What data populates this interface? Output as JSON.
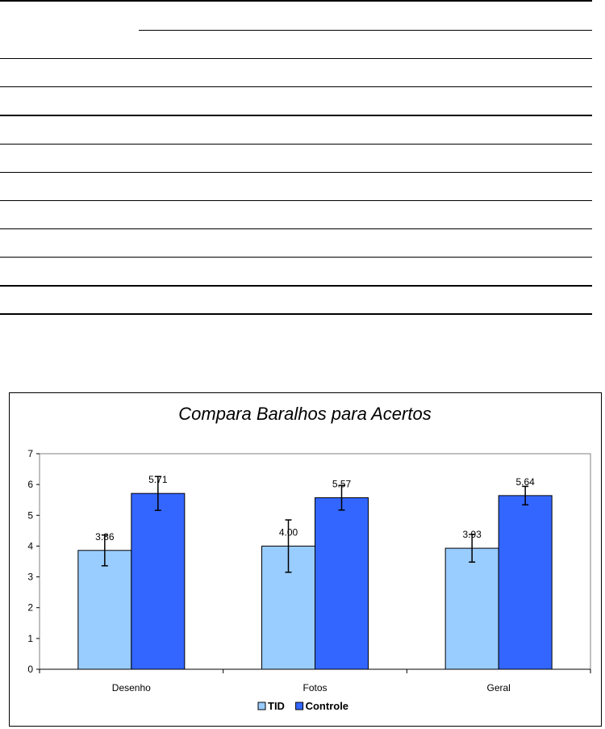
{
  "chart_data": {
    "type": "bar",
    "title": "Compara Baralhos para Acertos",
    "categories": [
      "Desenho",
      "Fotos",
      "Geral"
    ],
    "series": [
      {
        "name": "TID",
        "values": [
          3.86,
          4.0,
          3.93
        ],
        "error": [
          0.5,
          0.85,
          0.45
        ],
        "value_labels": [
          "3.86",
          "4.00",
          "3.93"
        ],
        "color": "#99ccff"
      },
      {
        "name": "Controle",
        "values": [
          5.71,
          5.57,
          5.64
        ],
        "error": [
          0.55,
          0.4,
          0.3
        ],
        "value_labels": [
          "5.71",
          "5.57",
          "5.64"
        ],
        "color": "#3366ff"
      }
    ],
    "ylim": [
      0,
      7
    ],
    "yticks": [
      "0",
      "1",
      "2",
      "3",
      "4",
      "5",
      "6",
      "7"
    ],
    "xlabel": "",
    "ylabel": "",
    "grid": false,
    "legend_position": "bottom",
    "plot_background": "#ffffff",
    "error_bars": true
  }
}
